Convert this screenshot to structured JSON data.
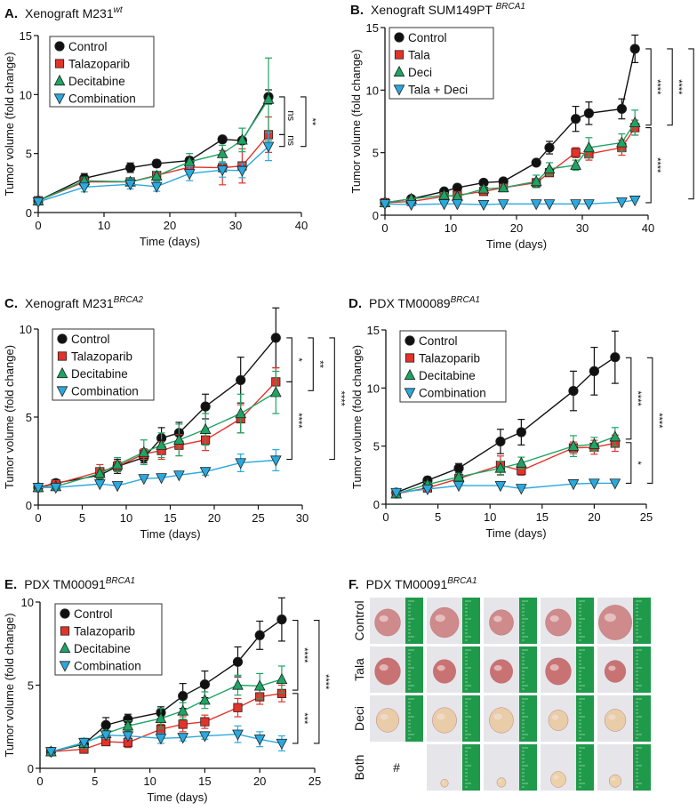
{
  "colors": {
    "control": "#111111",
    "tala": "#e2332a",
    "deci": "#1ea463",
    "comb": "#2aa9de",
    "ruler": "#1f9a4a"
  },
  "chart_data": [
    {
      "type": "line",
      "panel_label": "A.",
      "title": "Xenograft M231",
      "title_superscript": "wt",
      "xlabel": "Time (days)",
      "ylabel": "Tumor volume  (fold change)",
      "xlim": [
        0,
        40
      ],
      "ylim": [
        0,
        15
      ],
      "xticks": [
        0,
        10,
        20,
        30,
        40
      ],
      "yticks": [
        0,
        5,
        10,
        15
      ],
      "grid": false,
      "legend": "top-left",
      "x": [
        0,
        7,
        14,
        18,
        23,
        28,
        31,
        35
      ],
      "series": [
        {
          "name": "Control",
          "marker": "circle",
          "color": "#111111",
          "y": [
            1,
            2.9,
            3.8,
            4.15,
            4.4,
            6.2,
            6.1,
            9.8
          ],
          "err": [
            0.1,
            0.4,
            0.4,
            0.3,
            0.3,
            0.2,
            0.2,
            0.6
          ]
        },
        {
          "name": "Talazoparib",
          "marker": "square",
          "color": "#e2332a",
          "y": [
            1,
            2.6,
            2.6,
            3.15,
            3.85,
            3.8,
            3.95,
            6.6
          ],
          "err": [
            0.1,
            0.3,
            0.3,
            0.3,
            0.4,
            1.45,
            1.45,
            1.5
          ]
        },
        {
          "name": "Decitabine",
          "marker": "triangle-up",
          "color": "#1ea463",
          "y": [
            1,
            2.7,
            2.6,
            3.1,
            4.3,
            5.0,
            6.15,
            9.6
          ],
          "err": [
            0.1,
            0.3,
            0.3,
            0.4,
            0.7,
            0.7,
            1.0,
            3.5
          ]
        },
        {
          "name": "Combination",
          "marker": "triangle-down",
          "color": "#2aa9de",
          "y": [
            0.9,
            2.15,
            2.4,
            2.2,
            3.3,
            3.6,
            3.55,
            5.6
          ],
          "err": [
            0.1,
            0.4,
            0.4,
            0.4,
            0.6,
            0.6,
            0.6,
            1.2
          ]
        }
      ],
      "significance": [
        {
          "label": "ns",
          "y": [
            9.8,
            6.6
          ],
          "col": 0
        },
        {
          "label": "ns",
          "y": [
            6.6,
            5.6
          ],
          "col": 0
        },
        {
          "label": "**",
          "y": [
            9.8,
            5.6
          ],
          "col": 1
        }
      ]
    },
    {
      "type": "line",
      "panel_label": "B.",
      "title": "Xenograft SUM149PT ",
      "title_superscript": "BRCA1",
      "xlabel": "Time (days)",
      "ylabel": "Tumor volume  (fold change)",
      "xlim": [
        0,
        40
      ],
      "ylim": [
        0,
        15
      ],
      "xticks": [
        0,
        10,
        20,
        30,
        40
      ],
      "yticks": [
        0,
        5,
        10,
        15
      ],
      "grid": false,
      "legend": "top-left",
      "x": [
        0,
        4,
        9,
        11,
        15,
        18,
        23,
        25,
        29,
        31,
        36,
        38
      ],
      "series": [
        {
          "name": "Control",
          "marker": "circle",
          "color": "#111111",
          "y": [
            1,
            1.3,
            1.9,
            2.2,
            2.6,
            2.7,
            4.2,
            5.4,
            7.7,
            8.15,
            8.5,
            13.3
          ],
          "err": [
            0.05,
            0.1,
            0.1,
            0.1,
            0.1,
            0.1,
            0.1,
            0.5,
            1.0,
            0.9,
            0.8,
            1.1
          ]
        },
        {
          "name": "Tala",
          "marker": "square",
          "color": "#e2332a",
          "y": [
            1,
            1.1,
            1.5,
            1.6,
            1.9,
            2.2,
            2.6,
            3.4,
            5.0,
            4.9,
            5.4,
            7.0
          ],
          "err": [
            0.05,
            0.1,
            0.2,
            0.2,
            0.2,
            0.2,
            0.3,
            0.3,
            0.4,
            0.5,
            0.6,
            0.6
          ]
        },
        {
          "name": "Deci",
          "marker": "triangle-up",
          "color": "#1ea463",
          "y": [
            1,
            1.3,
            1.6,
            1.5,
            2.1,
            2.2,
            2.7,
            3.7,
            4.0,
            5.4,
            5.8,
            7.4
          ],
          "err": [
            0.05,
            0.1,
            0.2,
            0.2,
            0.2,
            0.2,
            0.5,
            0.5,
            0.4,
            0.8,
            0.7,
            1.0
          ]
        },
        {
          "name": "Tala + Deci",
          "marker": "triangle-down",
          "color": "#2aa9de",
          "y": [
            0.9,
            0.85,
            0.9,
            0.9,
            0.85,
            0.9,
            0.9,
            0.9,
            0.9,
            0.9,
            1.05,
            1.2
          ],
          "err": [
            0.05,
            0.05,
            0.05,
            0.05,
            0.05,
            0.05,
            0.05,
            0.05,
            0.05,
            0.05,
            0.05,
            0.1
          ]
        }
      ],
      "significance": [
        {
          "label": "****",
          "y": [
            13.3,
            7.2
          ],
          "col": 0
        },
        {
          "label": "****",
          "y": [
            7.0,
            1.0
          ],
          "col": 0
        },
        {
          "label": "****",
          "y": [
            13.3,
            7.2
          ],
          "col": 1
        },
        {
          "label": "****",
          "y": [
            13.3,
            1.3
          ],
          "col": 2
        }
      ]
    },
    {
      "type": "line",
      "panel_label": "C.",
      "title": "Xenograft M231",
      "title_superscript": "BRCA2",
      "xlabel": "Time (days)",
      "ylabel": "Tumor volume  (fold change)",
      "xlim": [
        0,
        30
      ],
      "ylim": [
        0,
        10
      ],
      "xticks": [
        0,
        5,
        10,
        15,
        20,
        25,
        30
      ],
      "yticks": [
        0,
        5,
        10
      ],
      "grid": false,
      "legend": "top-left",
      "x": [
        0,
        2,
        7,
        9,
        12,
        14,
        16,
        19,
        23,
        27
      ],
      "series": [
        {
          "name": "Control",
          "marker": "circle",
          "color": "#111111",
          "y": [
            1,
            1.25,
            1.7,
            2.2,
            2.7,
            3.8,
            4.1,
            5.6,
            7.1,
            9.5
          ],
          "err": [
            0.05,
            0.1,
            0.2,
            0.4,
            0.3,
            0.6,
            0.6,
            0.7,
            1.3,
            1.7
          ]
        },
        {
          "name": "Talazoparib",
          "marker": "square",
          "color": "#e2332a",
          "y": [
            1,
            1.2,
            1.9,
            2.2,
            2.9,
            3.1,
            3.4,
            3.7,
            4.9,
            7.0
          ],
          "err": [
            0.05,
            0.1,
            0.4,
            0.3,
            0.3,
            0.5,
            0.6,
            0.6,
            0.8,
            0.8
          ]
        },
        {
          "name": "Decitabine",
          "marker": "triangle-up",
          "color": "#1ea463",
          "y": [
            1,
            1.05,
            1.8,
            2.3,
            3.0,
            3.4,
            3.7,
            4.3,
            5.2,
            6.4
          ],
          "err": [
            0.05,
            0.1,
            0.3,
            0.4,
            0.7,
            0.7,
            0.9,
            0.9,
            1.1,
            1.2
          ]
        },
        {
          "name": "Combination",
          "marker": "triangle-down",
          "color": "#2aa9de",
          "y": [
            1,
            1,
            1.2,
            1.1,
            1.5,
            1.55,
            1.7,
            1.9,
            2.4,
            2.55
          ],
          "err": [
            0.05,
            0.05,
            0.1,
            0.1,
            0.1,
            0.1,
            0.1,
            0.2,
            0.5,
            0.6
          ]
        }
      ],
      "significance": [
        {
          "label": "*",
          "y": [
            9.5,
            7.0
          ],
          "col": 0
        },
        {
          "label": "****",
          "y": [
            7.0,
            2.6
          ],
          "col": 0
        },
        {
          "label": "**",
          "y": [
            9.5,
            6.5
          ],
          "col": 1
        },
        {
          "label": "****",
          "y": [
            9.5,
            2.6
          ],
          "col": 2
        }
      ]
    },
    {
      "type": "line",
      "panel_label": "D.",
      "title": "PDX  TM00089",
      "title_superscript": "BRCA1",
      "xlabel": "Time (days)",
      "ylabel": "Tumor volume  (fold change)",
      "xlim": [
        0,
        25
      ],
      "ylim": [
        0,
        15
      ],
      "xticks": [
        0,
        5,
        10,
        15,
        20,
        25
      ],
      "yticks": [
        0,
        5,
        10,
        15
      ],
      "grid": false,
      "legend": "top-left",
      "x": [
        1,
        4,
        7,
        11,
        13,
        18,
        20,
        22
      ],
      "series": [
        {
          "name": "Control",
          "marker": "circle",
          "color": "#111111",
          "y": [
            1,
            2.05,
            3.1,
            5.4,
            6.2,
            9.75,
            11.45,
            12.65
          ],
          "err": [
            0.1,
            0.3,
            0.4,
            1.05,
            1.1,
            1.7,
            2.05,
            2.25
          ]
        },
        {
          "name": "Talazoparib",
          "marker": "square",
          "color": "#e2332a",
          "y": [
            0.9,
            1.4,
            2.2,
            3.35,
            2.9,
            4.85,
            4.9,
            5.25
          ],
          "err": [
            0.1,
            0.2,
            0.3,
            0.8,
            0.4,
            0.5,
            0.6,
            0.7
          ]
        },
        {
          "name": "Decitabine",
          "marker": "triangle-up",
          "color": "#1ea463",
          "y": [
            0.9,
            1.7,
            2.35,
            3.1,
            3.55,
            5.0,
            5.15,
            5.8
          ],
          "err": [
            0.1,
            0.2,
            0.3,
            0.6,
            0.5,
            0.9,
            0.6,
            0.8
          ]
        },
        {
          "name": "Combination",
          "marker": "triangle-down",
          "color": "#2aa9de",
          "y": [
            1,
            1.3,
            1.6,
            1.6,
            1.35,
            1.75,
            1.8,
            1.8
          ],
          "err": [
            0.05,
            0.05,
            0.05,
            0.05,
            0.05,
            0.05,
            0.05,
            0.05
          ]
        }
      ],
      "significance": [
        {
          "label": "****",
          "y": [
            12.6,
            5.6
          ],
          "col": 0
        },
        {
          "label": "*",
          "y": [
            5.3,
            1.8
          ],
          "col": 0
        },
        {
          "label": "****",
          "y": [
            12.6,
            1.8
          ],
          "col": 1
        }
      ]
    },
    {
      "type": "line",
      "panel_label": "E.",
      "title": "PDX TM00091",
      "title_superscript": "BRCA1",
      "xlabel": "Time (days)",
      "ylabel": "Tumor volume  (fold change)",
      "xlim": [
        0,
        25
      ],
      "ylim": [
        0,
        10
      ],
      "xticks": [
        0,
        5,
        10,
        15,
        20,
        25
      ],
      "yticks": [
        0,
        5,
        10
      ],
      "grid": false,
      "legend": "top-left",
      "x": [
        1,
        4,
        6,
        8,
        11,
        13,
        15,
        18,
        20,
        22
      ],
      "series": [
        {
          "name": "Control",
          "marker": "circle",
          "color": "#111111",
          "y": [
            1,
            1.45,
            2.6,
            2.95,
            3.35,
            4.35,
            5.05,
            6.4,
            8.0,
            8.95
          ],
          "err": [
            0.05,
            0.2,
            0.45,
            0.3,
            0.35,
            0.75,
            0.8,
            0.9,
            0.85,
            1.3
          ]
        },
        {
          "name": "Talazoparib",
          "marker": "square",
          "color": "#e2332a",
          "y": [
            1,
            1.15,
            1.6,
            1.55,
            2.35,
            2.65,
            2.8,
            3.65,
            4.3,
            4.5
          ],
          "err": [
            0.05,
            0.1,
            0.2,
            0.3,
            0.3,
            0.45,
            0.4,
            0.55,
            0.45,
            0.5
          ]
        },
        {
          "name": "Decitabine",
          "marker": "triangle-up",
          "color": "#1ea463",
          "y": [
            1,
            1.5,
            2.1,
            2.55,
            3.0,
            3.45,
            4.1,
            5.0,
            4.95,
            5.35
          ],
          "err": [
            0.05,
            0.3,
            0.2,
            0.3,
            0.6,
            0.5,
            0.5,
            0.6,
            0.75,
            0.8
          ]
        },
        {
          "name": "Combination",
          "marker": "triangle-down",
          "color": "#2aa9de",
          "y": [
            1,
            1.55,
            2.0,
            1.95,
            1.8,
            1.85,
            1.95,
            2.05,
            1.75,
            1.5
          ],
          "err": [
            0.05,
            0.2,
            0.2,
            0.2,
            0.3,
            0.2,
            0.2,
            0.5,
            0.45,
            0.45
          ]
        }
      ],
      "significance": [
        {
          "label": "****",
          "y": [
            8.9,
            4.7
          ],
          "col": 0
        },
        {
          "label": "***",
          "y": [
            4.5,
            1.5
          ],
          "col": 0
        },
        {
          "label": "****",
          "y": [
            8.9,
            1.5
          ],
          "col": 1
        }
      ]
    }
  ],
  "photo_panel": {
    "panel_label": "F.",
    "title": "PDX TM00091",
    "title_superscript": "BRCA1",
    "rows": [
      "Control",
      "Tala",
      "Deci",
      "Both"
    ],
    "columns": 5,
    "missing_marker": "#"
  }
}
